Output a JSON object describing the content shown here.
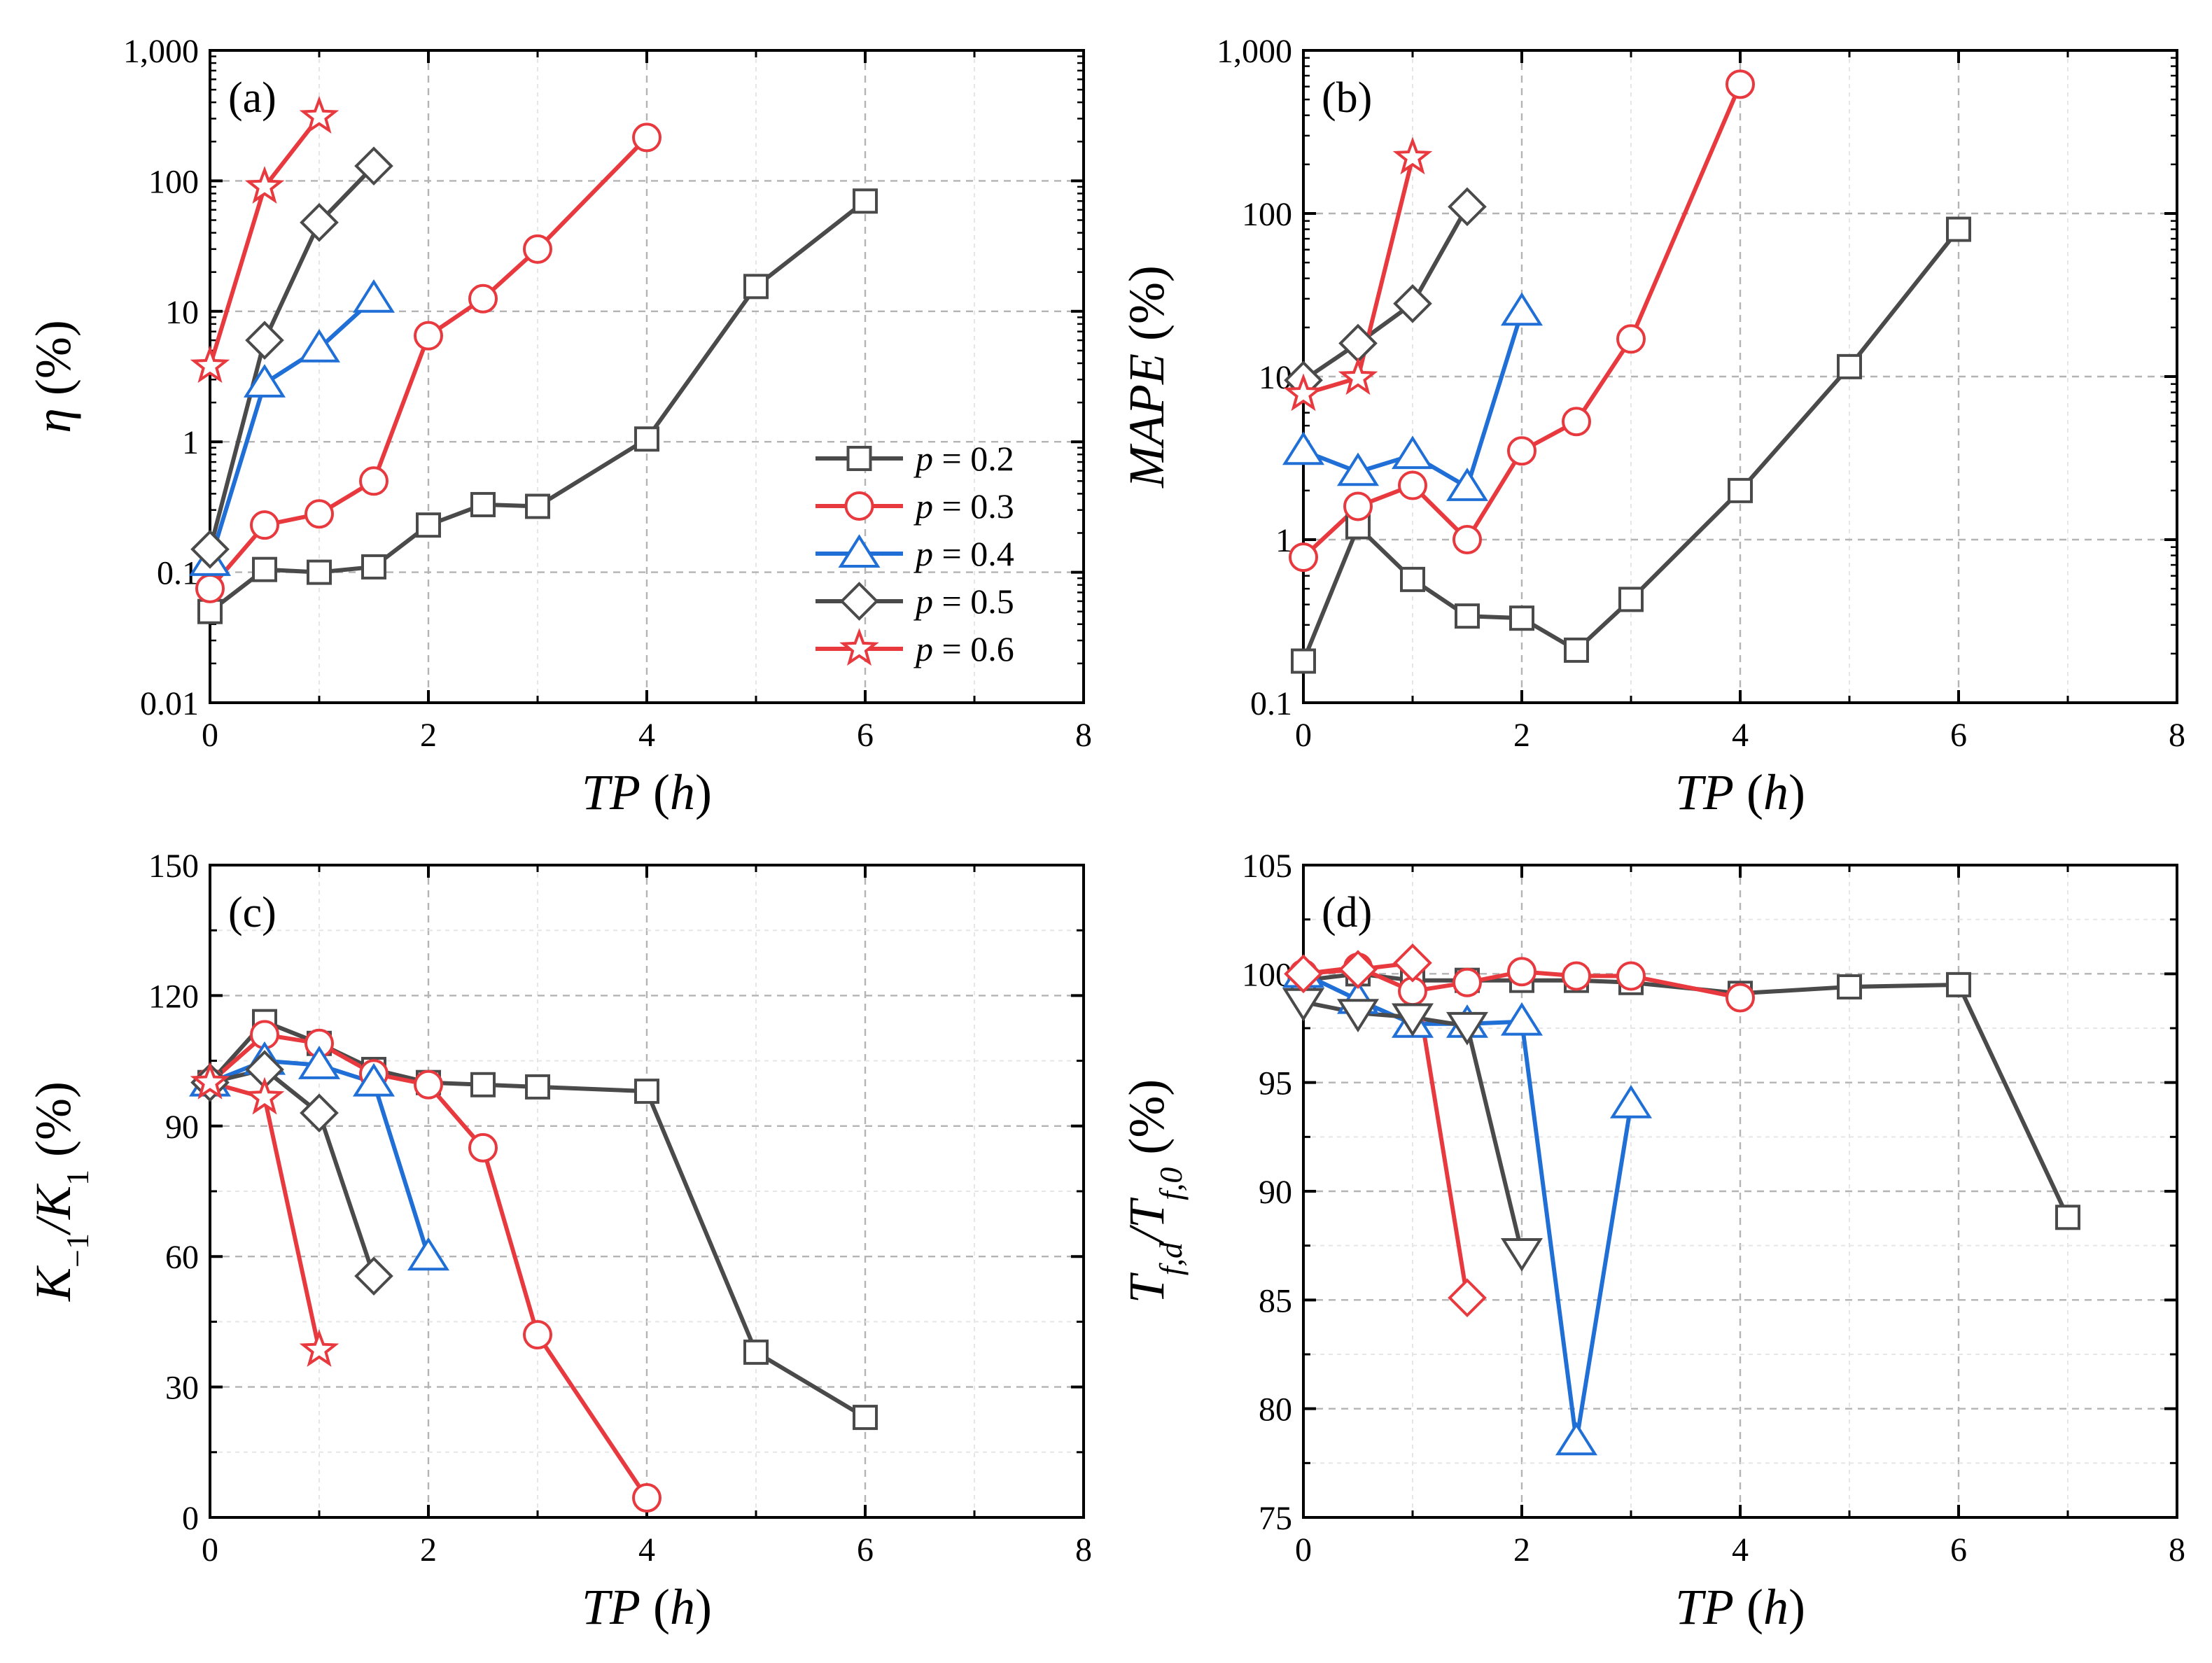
{
  "figure_title": "",
  "legend": [
    {
      "text": "p = 0.2",
      "var": "p",
      "rest": " = 0.2"
    },
    {
      "text": "p = 0.3",
      "var": "p",
      "rest": " = 0.3"
    },
    {
      "text": "p = 0.4",
      "var": "p",
      "rest": " = 0.4"
    },
    {
      "text": "p = 0.5",
      "var": "p",
      "rest": " = 0.5"
    },
    {
      "text": "p = 0.6",
      "var": "p",
      "rest": " = 0.6"
    }
  ],
  "chart_data": [
    {
      "panel": "(a)",
      "type": "line",
      "yscale": "log",
      "xlabel": "TP (h)",
      "ylabel": "η (%)",
      "xlim": [
        0,
        8
      ],
      "ylim": [
        0.01,
        1000
      ],
      "xticks": [
        "0",
        "2",
        "4",
        "6",
        "8"
      ],
      "yticks": [
        {
          "v": 0.01,
          "label": "0.01"
        },
        {
          "v": 0.1,
          "label": "0.1"
        },
        {
          "v": 1,
          "label": "1"
        },
        {
          "v": 10,
          "label": "10"
        },
        {
          "v": 100,
          "label": "100"
        },
        {
          "v": 1000,
          "label": "1,000"
        }
      ],
      "series": [
        {
          "name": "p = 0.2",
          "color": "#4a4a4a",
          "marker": "square",
          "x": [
            0,
            0.5,
            1,
            1.5,
            2,
            2.5,
            3,
            4,
            5,
            6
          ],
          "y": [
            0.05,
            0.105,
            0.1,
            0.11,
            0.23,
            0.33,
            0.32,
            1.05,
            15.5,
            70
          ]
        },
        {
          "name": "p = 0.3",
          "color": "#e8393f",
          "marker": "circle",
          "x": [
            0,
            0.5,
            1,
            1.5,
            2,
            2.5,
            3,
            4
          ],
          "y": [
            0.075,
            0.23,
            0.28,
            0.5,
            6.5,
            12.5,
            30,
            215
          ]
        },
        {
          "name": "p = 0.4",
          "color": "#1f6fd6",
          "marker": "triangle",
          "x": [
            0,
            0.5,
            1,
            1.5
          ],
          "y": [
            0.12,
            2.8,
            5.2,
            12.5
          ]
        },
        {
          "name": "p = 0.5",
          "color": "#4a4a4a",
          "marker": "diamond",
          "x": [
            0,
            0.5,
            1,
            1.5
          ],
          "y": [
            0.15,
            6,
            48,
            130
          ]
        },
        {
          "name": "p = 0.6",
          "color": "#e8393f",
          "marker": "star",
          "x": [
            0,
            0.5,
            1
          ],
          "y": [
            3.8,
            90,
            310
          ]
        }
      ]
    },
    {
      "panel": "(b)",
      "type": "line",
      "yscale": "log",
      "xlabel": "TP (h)",
      "ylabel": "MAPE (%)",
      "xlim": [
        0,
        8
      ],
      "ylim": [
        0.1,
        1000
      ],
      "xticks": [
        "0",
        "2",
        "4",
        "6",
        "8"
      ],
      "yticks": [
        {
          "v": 0.1,
          "label": "0.1"
        },
        {
          "v": 1,
          "label": "1"
        },
        {
          "v": 10,
          "label": "10"
        },
        {
          "v": 100,
          "label": "100"
        },
        {
          "v": 1000,
          "label": "1,000"
        }
      ],
      "series": [
        {
          "name": "p = 0.2",
          "color": "#4a4a4a",
          "marker": "square",
          "x": [
            0,
            0.5,
            1,
            1.5,
            2,
            2.5,
            3,
            4,
            5,
            6
          ],
          "y": [
            0.18,
            1.2,
            0.57,
            0.34,
            0.33,
            0.21,
            0.43,
            2,
            11.5,
            80
          ]
        },
        {
          "name": "p = 0.3",
          "color": "#e8393f",
          "marker": "circle",
          "x": [
            0,
            0.5,
            1,
            1.5,
            2,
            2.5,
            3,
            4
          ],
          "y": [
            0.78,
            1.6,
            2.15,
            1,
            3.5,
            5.3,
            17,
            620
          ]
        },
        {
          "name": "p = 0.4",
          "color": "#1f6fd6",
          "marker": "triangle",
          "x": [
            0,
            0.5,
            1,
            1.5,
            2
          ],
          "y": [
            3.5,
            2.6,
            3.3,
            2.1,
            25
          ]
        },
        {
          "name": "p = 0.5",
          "color": "#4a4a4a",
          "marker": "diamond",
          "x": [
            0,
            0.5,
            1,
            1.5
          ],
          "y": [
            9.5,
            16,
            28,
            110
          ]
        },
        {
          "name": "p = 0.6",
          "color": "#e8393f",
          "marker": "star",
          "x": [
            0,
            0.5,
            1
          ],
          "y": [
            7.8,
            9.8,
            220
          ]
        }
      ]
    },
    {
      "panel": "(c)",
      "type": "line",
      "yscale": "linear",
      "xlabel": "TP (h)",
      "ylabel": "K₋₁/K₁ (%)",
      "xlim": [
        0,
        8
      ],
      "ylim": [
        0,
        150
      ],
      "xticks": [
        "0",
        "2",
        "4",
        "6",
        "8"
      ],
      "yticks": [
        {
          "v": 0,
          "label": "0"
        },
        {
          "v": 30,
          "label": "30"
        },
        {
          "v": 60,
          "label": "60"
        },
        {
          "v": 90,
          "label": "90"
        },
        {
          "v": 120,
          "label": "120"
        },
        {
          "v": 150,
          "label": "150"
        }
      ],
      "series": [
        {
          "name": "p = 0.2",
          "color": "#4a4a4a",
          "marker": "square",
          "x": [
            0,
            0.5,
            1,
            1.5,
            2,
            2.5,
            3,
            4,
            5,
            6
          ],
          "y": [
            100,
            114,
            109,
            103,
            100,
            99.5,
            99,
            98,
            38,
            23
          ]
        },
        {
          "name": "p = 0.3",
          "color": "#e8393f",
          "marker": "circle",
          "x": [
            0,
            0.5,
            1,
            1.5,
            2,
            2.5,
            3,
            4
          ],
          "y": [
            100,
            111,
            109,
            102,
            99.5,
            85,
            42,
            4.5
          ]
        },
        {
          "name": "p = 0.4",
          "color": "#1f6fd6",
          "marker": "triangle",
          "x": [
            0,
            0.5,
            1,
            1.5,
            2
          ],
          "y": [
            100,
            105,
            104,
            100,
            60
          ]
        },
        {
          "name": "p = 0.5",
          "color": "#4a4a4a",
          "marker": "diamond",
          "x": [
            0,
            0.5,
            1,
            1.5
          ],
          "y": [
            100,
            103,
            93,
            55.5
          ]
        },
        {
          "name": "p = 0.6",
          "color": "#e8393f",
          "marker": "star",
          "x": [
            0,
            0.5,
            1
          ],
          "y": [
            100,
            96.5,
            38.5
          ]
        }
      ]
    },
    {
      "panel": "(d)",
      "type": "line",
      "yscale": "linear",
      "xlabel": "TP (h)",
      "ylabel": "Tf,d/Tf,0 (%)",
      "xlim": [
        0,
        8
      ],
      "ylim": [
        75,
        105
      ],
      "xticks": [
        "0",
        "2",
        "4",
        "6",
        "8"
      ],
      "yticks": [
        {
          "v": 75,
          "label": "75"
        },
        {
          "v": 80,
          "label": "80"
        },
        {
          "v": 85,
          "label": "85"
        },
        {
          "v": 90,
          "label": "90"
        },
        {
          "v": 95,
          "label": "95"
        },
        {
          "v": 100,
          "label": "100"
        },
        {
          "v": 105,
          "label": "105"
        }
      ],
      "series": [
        {
          "name": "p = 0.2",
          "color": "#4a4a4a",
          "marker": "square",
          "x": [
            0,
            0.5,
            1,
            1.5,
            2,
            2.5,
            3,
            4,
            5,
            6,
            7
          ],
          "y": [
            99.7,
            100,
            99.7,
            99.7,
            99.7,
            99.7,
            99.6,
            99.1,
            99.4,
            99.5,
            88.8
          ]
        },
        {
          "name": "p = 0.3",
          "color": "#e8393f",
          "marker": "circle",
          "x": [
            0,
            0.5,
            1,
            1.5,
            2,
            2.5,
            3,
            4
          ],
          "y": [
            100,
            100.3,
            99.2,
            99.6,
            100.1,
            99.9,
            99.9,
            98.9
          ]
        },
        {
          "name": "p = 0.4",
          "color": "#1f6fd6",
          "marker": "triangle",
          "x": [
            0,
            0.5,
            1,
            1.5,
            2,
            2.5,
            3
          ],
          "y": [
            100,
            98.8,
            97.7,
            97.7,
            97.8,
            78.5,
            94
          ]
        },
        {
          "name": "p = 0.5",
          "color": "#4a4a4a",
          "marker": "triangle-down",
          "x": [
            0,
            0.5,
            1,
            1.5,
            2
          ],
          "y": [
            98.7,
            98.2,
            98,
            97.6,
            87.2
          ]
        },
        {
          "name": "p = 0.6",
          "color": "#e8393f",
          "marker": "diamond",
          "x": [
            0,
            0.5,
            1,
            1.5
          ],
          "y": [
            100,
            100.2,
            100.5,
            85.1
          ]
        }
      ]
    }
  ]
}
